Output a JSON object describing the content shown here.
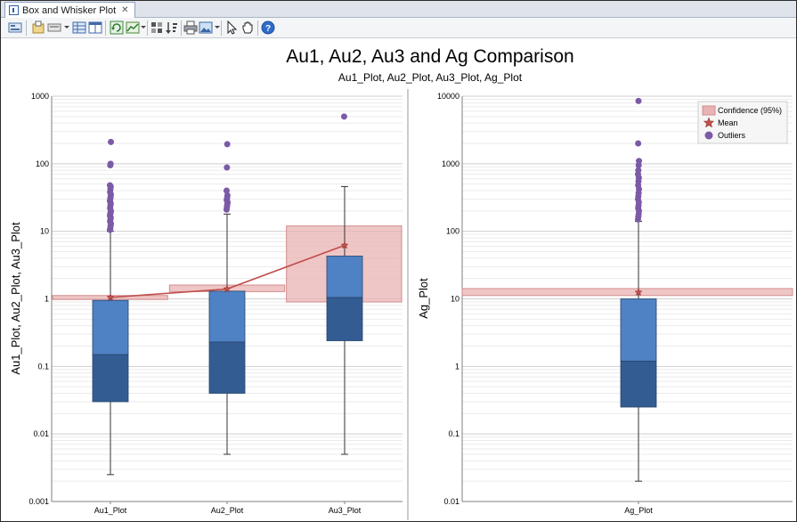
{
  "window": {
    "tab_title": "Box and Whisker Plot"
  },
  "toolbar": {
    "icons": [
      "layout-icon",
      "export-icon",
      "copy-icon",
      "grid-icon",
      "table-icon",
      "refresh-icon",
      "chart-type-icon",
      "series-icon",
      "sort-icon",
      "print-icon",
      "image-icon",
      "select-icon",
      "pan-icon",
      "help-icon"
    ]
  },
  "chart_data": [
    {
      "type": "box",
      "title": "Au1, Au2, Au3 and Ag Comparison",
      "subtitle": "Au1_Plot, Au2_Plot, Au3_Plot, Ag_Plot",
      "ylabel": "Au1_Plot, Au2_Plot, Au3_Plot",
      "xlabel": "",
      "yscale": "log",
      "ylim": [
        0.001,
        1000
      ],
      "yticks": [
        {
          "v": 0.001,
          "label": "0.001"
        },
        {
          "v": 0.01,
          "label": "0.01"
        },
        {
          "v": 0.1,
          "label": "0.1"
        },
        {
          "v": 1,
          "label": "1"
        },
        {
          "v": 10,
          "label": "10"
        },
        {
          "v": 100,
          "label": "100"
        },
        {
          "v": 1000,
          "label": "1000"
        }
      ],
      "grid": true,
      "categories": [
        "Au1_Plot",
        "Au2_Plot",
        "Au3_Plot"
      ],
      "boxes": [
        {
          "min": 0.0025,
          "q1": 0.03,
          "median": 0.15,
          "q3": 0.95,
          "max": 10,
          "mean": 1.05,
          "ci": [
            0.98,
            1.12
          ],
          "outliers": [
            10.5,
            11,
            12,
            13,
            14,
            15,
            16,
            17,
            18,
            19,
            20,
            22,
            24,
            26,
            28,
            30,
            32,
            35,
            38,
            42,
            46,
            48,
            95,
            100,
            210
          ]
        },
        {
          "min": 0.005,
          "q1": 0.04,
          "median": 0.23,
          "q3": 1.3,
          "max": 18,
          "mean": 1.4,
          "ci": [
            1.28,
            1.6
          ],
          "outliers": [
            21,
            23,
            25,
            27,
            29,
            31,
            34,
            40,
            88,
            195
          ]
        },
        {
          "min": 0.005,
          "q1": 0.24,
          "median": 1.05,
          "q3": 4.3,
          "max": 46,
          "mean": 6.2,
          "ci": [
            0.9,
            12
          ],
          "outliers": [
            500
          ]
        }
      ],
      "colors": {
        "box_lower": "#335c92",
        "box_upper": "#4f82c4",
        "mean": "#c0504d",
        "ci_fill": "#e9b3b3",
        "ci_stroke": "#d38c8c",
        "outlier": "#7b5aa6"
      }
    },
    {
      "type": "box",
      "title": "",
      "ylabel": "Ag_Plot",
      "xlabel": "",
      "yscale": "log",
      "ylim": [
        0.01,
        10000
      ],
      "yticks": [
        {
          "v": 0.01,
          "label": "0.01"
        },
        {
          "v": 0.1,
          "label": "0.1"
        },
        {
          "v": 1,
          "label": "1"
        },
        {
          "v": 10,
          "label": "10"
        },
        {
          "v": 100,
          "label": "100"
        },
        {
          "v": 1000,
          "label": "1000"
        },
        {
          "v": 10000,
          "label": "10000"
        }
      ],
      "grid": true,
      "categories": [
        "Ag_Plot"
      ],
      "boxes": [
        {
          "min": 0.02,
          "q1": 0.25,
          "median": 1.2,
          "q3": 10,
          "max": 140,
          "mean": 12.5,
          "ci": [
            11.2,
            14.2
          ],
          "outliers": [
            150,
            165,
            180,
            200,
            220,
            240,
            270,
            300,
            330,
            370,
            420,
            480,
            550,
            620,
            700,
            800,
            950,
            1100,
            2000,
            8500
          ]
        }
      ],
      "legend": {
        "position": "top-right",
        "entries": [
          {
            "label": "Confidence (95%)",
            "kind": "confidence"
          },
          {
            "label": "Mean",
            "kind": "mean"
          },
          {
            "label": "Outliers",
            "kind": "outlier"
          }
        ]
      }
    }
  ]
}
